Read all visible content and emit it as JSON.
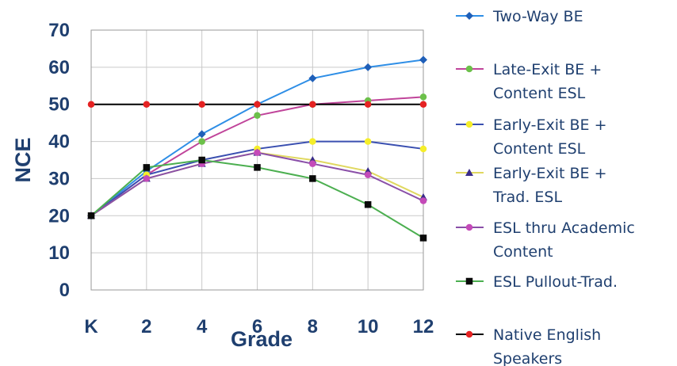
{
  "chart_data": {
    "type": "line",
    "xlabel": "Grade",
    "ylabel": "NCE",
    "x": [
      "K",
      "2",
      "4",
      "6",
      "8",
      "10",
      "12"
    ],
    "ylim": [
      0,
      70
    ],
    "yticks": [
      0,
      10,
      20,
      30,
      40,
      50,
      60,
      70
    ],
    "grid": "vertical and horizontal",
    "legend_position": "right",
    "series": [
      {
        "name": "Two-Way BE",
        "color": "#2e8ee6",
        "marker": "diamond",
        "marker_color": "#1f5fb8",
        "values": [
          20,
          32,
          42,
          50,
          57,
          60,
          62
        ]
      },
      {
        "name": "Late-Exit BE + Content ESL",
        "color": "#c0449a",
        "marker": "circle",
        "marker_color": "#6cc04a",
        "values": [
          20,
          31,
          40,
          47,
          50,
          51,
          52
        ]
      },
      {
        "name": "Early-Exit BE + Content ESL",
        "color": "#3a4fb0",
        "marker": "circle",
        "marker_color": "#f5ee2a",
        "values": [
          20,
          31,
          35,
          38,
          40,
          40,
          38
        ]
      },
      {
        "name": "Early-Exit BE + Trad. ESL",
        "color": "#e0d860",
        "marker": "triangle",
        "marker_color": "#3a2c8a",
        "values": [
          20,
          30,
          34,
          37,
          35,
          32,
          25
        ]
      },
      {
        "name": "ESL thru Academic Content",
        "color": "#8a4fa8",
        "marker": "circle",
        "marker_color": "#c44ab8",
        "values": [
          20,
          30,
          34,
          37,
          34,
          31,
          24
        ]
      },
      {
        "name": "ESL Pullout-Trad.",
        "color": "#4caf50",
        "marker": "square",
        "marker_color": "#0a0a0a",
        "values": [
          20,
          33,
          35,
          33,
          30,
          23,
          14
        ]
      },
      {
        "name": "Native English Speakers",
        "color": "#000000",
        "marker": "circle",
        "marker_color": "#e52222",
        "values": [
          50,
          50,
          50,
          50,
          50,
          50,
          50
        ]
      }
    ],
    "legend_lines": [
      [
        "Two-Way BE"
      ],
      [
        "Late-Exit BE +",
        "Content ESL"
      ],
      [
        "Early-Exit BE +",
        "Content ESL"
      ],
      [
        "Early-Exit BE +",
        "Trad. ESL"
      ],
      [
        "ESL thru Academic",
        "Content"
      ],
      [
        "ESL Pullout-Trad."
      ],
      [
        "Native English",
        "Speakers"
      ]
    ]
  }
}
